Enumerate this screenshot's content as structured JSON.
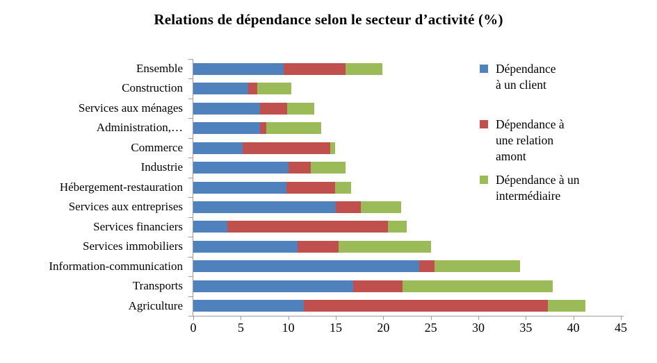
{
  "title": "Relations de dépendance selon le secteur d’activité (%)",
  "colors": {
    "client": "#4F81BD",
    "amont": "#C0504D",
    "intermediaire": "#9BBB59",
    "axis": "#9c9c9c",
    "text": "#000000",
    "background": "#ffffff"
  },
  "legend": {
    "position": "right",
    "items": [
      {
        "key": "client",
        "color": "#4F81BD",
        "lines": [
          "Dépendance",
          "à un client"
        ]
      },
      {
        "key": "amont",
        "color": "#C0504D",
        "lines": [
          "Dépendance à",
          "une relation",
          "amont"
        ]
      },
      {
        "key": "intermediaire",
        "color": "#9BBB59",
        "lines": [
          "Dépendance à un",
          "intermédiaire"
        ]
      }
    ]
  },
  "chart_data": {
    "type": "bar",
    "orientation": "horizontal",
    "stacked": true,
    "grid": false,
    "legend_position": "right",
    "title": "Relations de dépendance selon le secteur d’activité (%)",
    "xlabel": "",
    "ylabel": "",
    "x_axis": {
      "min": 0,
      "max": 45,
      "step": 5,
      "tick_labels": [
        "0",
        "5",
        "10",
        "15",
        "20",
        "25",
        "30",
        "35",
        "40",
        "45"
      ]
    },
    "categories": [
      "Ensemble",
      "Construction",
      "Services aux ménages",
      "Administration,…",
      "Commerce",
      "Industrie",
      "Hébergement-restauration",
      "Services aux entreprises",
      "Services financiers",
      "Services immobiliers",
      "Information-communication",
      "Transports",
      "Agriculture"
    ],
    "series": [
      {
        "key": "client",
        "name": "Dépendance à un client",
        "color": "#4F81BD",
        "values": [
          9.5,
          5.8,
          7.0,
          7.0,
          5.2,
          10.0,
          9.8,
          15.0,
          3.6,
          11.0,
          23.8,
          16.8,
          11.6
        ]
      },
      {
        "key": "amont",
        "name": "Dépendance à une relation amont",
        "color": "#C0504D",
        "values": [
          6.5,
          0.9,
          2.9,
          0.7,
          9.2,
          2.4,
          5.1,
          2.6,
          16.9,
          4.3,
          1.6,
          5.2,
          25.7
        ]
      },
      {
        "key": "intermediaire",
        "name": "Dépendance à un intermédiaire",
        "color": "#9BBB59",
        "values": [
          3.9,
          3.6,
          2.8,
          5.8,
          0.5,
          3.6,
          1.7,
          4.3,
          2.0,
          9.7,
          9.0,
          15.8,
          4.0
        ]
      }
    ]
  }
}
